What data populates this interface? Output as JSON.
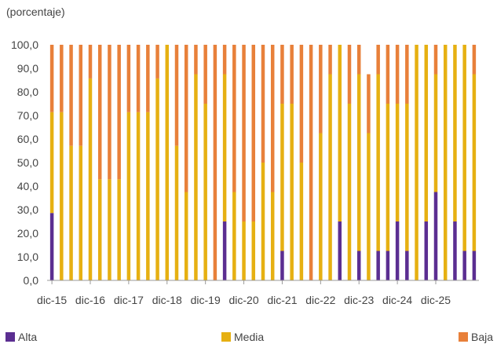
{
  "chart_data": {
    "type": "bar",
    "stacked": true,
    "unit_label": "(porcentaje)",
    "ylim": [
      0,
      100
    ],
    "yticks": [
      "0,0",
      "10,0",
      "20,0",
      "30,0",
      "40,0",
      "50,0",
      "60,0",
      "70,0",
      "80,0",
      "90,0",
      "100,0"
    ],
    "xtick_labels": [
      "dic-15",
      "dic-16",
      "dic-17",
      "dic-18",
      "dic-19",
      "dic-20",
      "dic-21",
      "dic-22",
      "dic-23",
      "dic-24",
      "dic-25"
    ],
    "grid": false,
    "legend_position": "bottom",
    "series": [
      {
        "name": "Alta",
        "color": "#5b2e91",
        "values": [
          28.6,
          0,
          0,
          0,
          0,
          0,
          0,
          0,
          0,
          0,
          0,
          0,
          0,
          0,
          0,
          0,
          0,
          0,
          25,
          0,
          0,
          0,
          0,
          0,
          12.5,
          0,
          0,
          0,
          0,
          0,
          25,
          0,
          12.5,
          0,
          12.5,
          12.5,
          25,
          12.5,
          0,
          25,
          37.5,
          0,
          25,
          12.5,
          12.5
        ]
      },
      {
        "name": "Media",
        "color": "#e6b012",
        "values": [
          42.8,
          71.4,
          57.1,
          57.1,
          85.7,
          42.9,
          42.9,
          42.9,
          71.4,
          71.4,
          71.4,
          85.7,
          100,
          57.1,
          37.5,
          87.5,
          75,
          0,
          62.5,
          37.5,
          25,
          25,
          50,
          37.5,
          62.5,
          75,
          50,
          0,
          62.5,
          87.5,
          75,
          75,
          75,
          62.5,
          75,
          62.5,
          50,
          62.5,
          100,
          75,
          50,
          100,
          75,
          87.5,
          75
        ]
      },
      {
        "name": "Baja",
        "color": "#e8803a",
        "values": [
          28.6,
          28.6,
          42.9,
          42.9,
          14.3,
          57.1,
          57.1,
          57.1,
          28.6,
          28.6,
          28.6,
          14.3,
          0,
          42.9,
          62.5,
          12.5,
          25,
          100,
          12.5,
          62.5,
          75,
          75,
          50,
          62.5,
          25,
          25,
          50,
          100,
          37.5,
          12.5,
          0,
          25,
          12.5,
          25,
          12.5,
          25,
          25,
          25,
          0,
          0,
          12.5,
          0,
          0,
          0,
          12.5
        ]
      }
    ]
  }
}
